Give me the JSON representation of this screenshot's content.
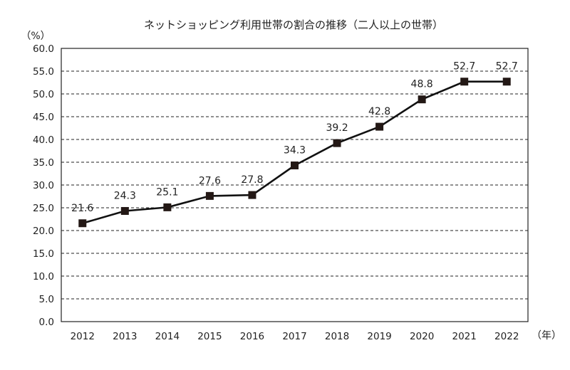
{
  "chart_data": {
    "type": "line",
    "title": "ネットショッピング利用世帯の割合の推移（二人以上の世帯）",
    "ylabel": "（%）",
    "xlabel": "（年）",
    "x": [
      "2012",
      "2013",
      "2014",
      "2015",
      "2016",
      "2017",
      "2018",
      "2019",
      "2020",
      "2021",
      "2022"
    ],
    "series": [
      {
        "values": [
          21.6,
          24.3,
          25.1,
          27.6,
          27.8,
          34.3,
          39.2,
          42.8,
          48.8,
          52.7,
          52.7
        ]
      }
    ],
    "data_labels": [
      "21.6",
      "24.3",
      "25.1",
      "27.6",
      "27.8",
      "34.3",
      "39.2",
      "42.8",
      "48.8",
      "52.7",
      "52.7"
    ],
    "y_ticks": [
      "60.0",
      "55.0",
      "50.0",
      "45.0",
      "40.0",
      "35.0",
      "30.0",
      "25.0",
      "20.0",
      "15.0",
      "10.0",
      "5.0",
      "0.0"
    ],
    "ylim": [
      0,
      60
    ],
    "grid": true,
    "legend": "none",
    "line_color": "#111111",
    "marker_color": "#231815",
    "marker": "square"
  }
}
